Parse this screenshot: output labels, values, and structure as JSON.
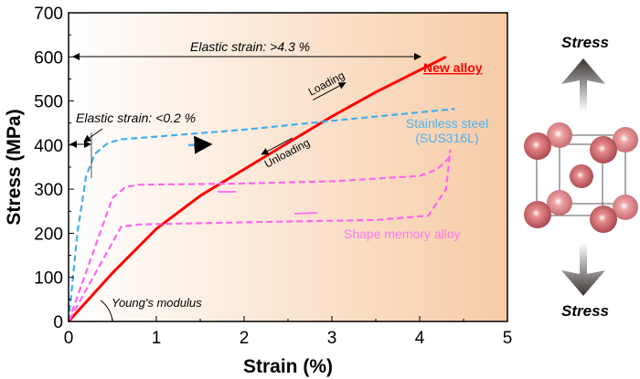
{
  "chart_data": {
    "type": "line",
    "xlabel": "Strain (%)",
    "ylabel": "Stress (MPa)",
    "xlim": [
      0,
      5
    ],
    "ylim": [
      0,
      700
    ],
    "xticks": [
      "0",
      "1",
      "2",
      "3",
      "4",
      "5"
    ],
    "yticks": [
      "0",
      "100",
      "200",
      "300",
      "400",
      "500",
      "600",
      "700"
    ],
    "grid": false,
    "series": [
      {
        "name": "New alloy",
        "color": "#ff0000",
        "style": "solid",
        "x": [
          0,
          0.5,
          1,
          1.5,
          2,
          2.5,
          3,
          3.5,
          4,
          4.3
        ],
        "y": [
          0,
          110,
          210,
          285,
          345,
          405,
          465,
          520,
          570,
          600
        ]
      },
      {
        "name": "Stainless steel (SUS316L)",
        "color": "#3fb0f0",
        "style": "dashed",
        "x": [
          0,
          0.1,
          0.2,
          0.3,
          0.45,
          0.6,
          0.8,
          2,
          3,
          4.4
        ],
        "y": [
          0,
          200,
          330,
          380,
          405,
          413,
          416,
          435,
          455,
          482
        ]
      },
      {
        "name": "Shape memory alloy",
        "color": "#ff66ee",
        "style": "dashed",
        "x": [
          0,
          0.5,
          0.65,
          0.8,
          2,
          3,
          4,
          4.2,
          4.33,
          4.35,
          4.3,
          4.1,
          3.5,
          2,
          0.8,
          0.6,
          0
        ],
        "y": [
          0,
          280,
          305,
          310,
          313,
          318,
          330,
          345,
          370,
          390,
          300,
          240,
          230,
          225,
          220,
          215,
          0
        ]
      }
    ],
    "annotations": {
      "elastic_new": "Elastic strain: >4.3 %",
      "elastic_steel": "Elastic strain: <0.2 %",
      "loading": "Loading",
      "unloading": "Unloading",
      "youngs": "Young's modulus"
    },
    "legend_labels": {
      "new_alloy": "New alloy",
      "steel_1": "Stainless steel",
      "steel_2": "(SUS316L)",
      "sma": "Shape memory alloy"
    }
  },
  "illustration": {
    "stress_top": "Stress",
    "stress_bottom": "Stress"
  }
}
